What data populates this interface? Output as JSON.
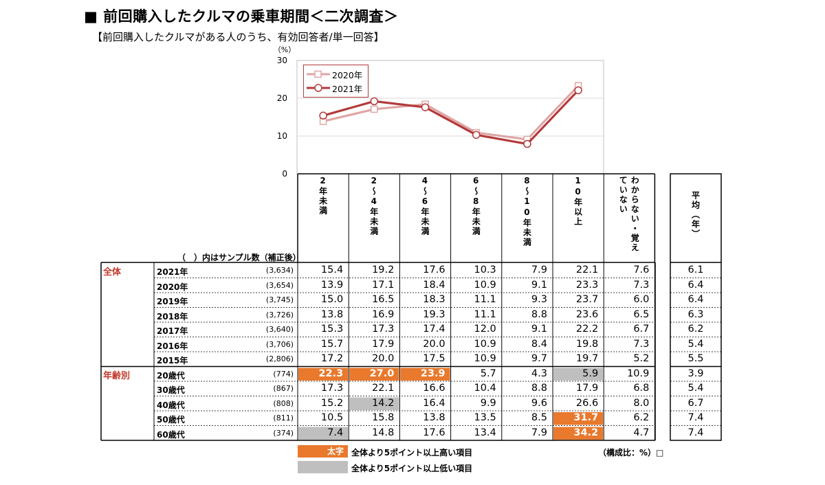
{
  "header": {
    "bullet": "■",
    "title": "前回購入したクルマの乗車期間＜二次調査＞",
    "subtitle": "【前回購入したクルマがある人のうち、有効回答者/単一回答】"
  },
  "chart_data": {
    "type": "line",
    "y_unit": "（%）",
    "ylim": [
      0,
      30
    ],
    "yticks": [
      "30",
      "20",
      "10",
      "0"
    ],
    "categories": [
      "2年未満",
      "2〜4年未満",
      "4〜6年未満",
      "6〜8年未満",
      "8〜10年未満",
      "10年以上"
    ],
    "series": [
      {
        "name": "2020年",
        "values": [
          13.9,
          17.1,
          18.4,
          10.9,
          9.1,
          23.3
        ],
        "color": "#e0a5a5",
        "marker": "square"
      },
      {
        "name": "2021年",
        "values": [
          15.4,
          19.2,
          17.6,
          10.3,
          7.9,
          22.1
        ],
        "color": "#b33a3a",
        "marker": "circle"
      }
    ],
    "legend": [
      "2020年",
      "2021年"
    ],
    "grid": true
  },
  "table": {
    "sample_note": "（　）内はサンプル数（補正後）",
    "col_headers": [
      "2年未満",
      "2〜4年未満",
      "4〜6年未満",
      "6〜8年未満",
      "8〜10年未満",
      "10年以上",
      "わからない・覚えていない"
    ],
    "avg_header": "平均（年）",
    "groups": [
      {
        "label": "全体",
        "start_row": 0
      },
      {
        "label": "年齢別",
        "start_row": 7
      }
    ],
    "rows": [
      {
        "label": "2021年",
        "n": "(3,634)",
        "values": [
          "15.4",
          "19.2",
          "17.6",
          "10.3",
          "7.9",
          "22.1",
          "7.6"
        ],
        "avg": "6.1",
        "hl": [
          "",
          "",
          "",
          "",
          "",
          "",
          ""
        ]
      },
      {
        "label": "2020年",
        "n": "(3,654)",
        "values": [
          "13.9",
          "17.1",
          "18.4",
          "10.9",
          "9.1",
          "23.3",
          "7.3"
        ],
        "avg": "6.4",
        "hl": [
          "",
          "",
          "",
          "",
          "",
          "",
          ""
        ]
      },
      {
        "label": "2019年",
        "n": "(3,745)",
        "values": [
          "15.0",
          "16.5",
          "18.3",
          "11.1",
          "9.3",
          "23.7",
          "6.0"
        ],
        "avg": "6.4",
        "hl": [
          "",
          "",
          "",
          "",
          "",
          "",
          ""
        ]
      },
      {
        "label": "2018年",
        "n": "(3,726)",
        "values": [
          "13.8",
          "16.9",
          "19.3",
          "11.1",
          "8.8",
          "23.6",
          "6.5"
        ],
        "avg": "6.3",
        "hl": [
          "",
          "",
          "",
          "",
          "",
          "",
          ""
        ]
      },
      {
        "label": "2017年",
        "n": "(3,640)",
        "values": [
          "15.3",
          "17.3",
          "17.4",
          "12.0",
          "9.1",
          "22.2",
          "6.7"
        ],
        "avg": "6.2",
        "hl": [
          "",
          "",
          "",
          "",
          "",
          "",
          ""
        ]
      },
      {
        "label": "2016年",
        "n": "(3,706)",
        "values": [
          "15.7",
          "17.9",
          "20.0",
          "10.9",
          "8.4",
          "19.8",
          "7.3"
        ],
        "avg": "5.4",
        "hl": [
          "",
          "",
          "",
          "",
          "",
          "",
          ""
        ]
      },
      {
        "label": "2015年",
        "n": "(2,806)",
        "values": [
          "17.2",
          "20.0",
          "17.5",
          "10.9",
          "9.7",
          "19.7",
          "5.2"
        ],
        "avg": "5.5",
        "hl": [
          "",
          "",
          "",
          "",
          "",
          "",
          ""
        ]
      },
      {
        "label": "20歳代",
        "n": "(774)",
        "values": [
          "22.3",
          "27.0",
          "23.9",
          "5.7",
          "4.3",
          "5.9",
          "10.9"
        ],
        "avg": "3.9",
        "hl": [
          "high",
          "high",
          "high",
          "",
          "",
          "low",
          ""
        ]
      },
      {
        "label": "30歳代",
        "n": "(867)",
        "values": [
          "17.3",
          "22.1",
          "16.6",
          "10.4",
          "8.8",
          "17.9",
          "6.8"
        ],
        "avg": "5.4",
        "hl": [
          "",
          "",
          "",
          "",
          "",
          "",
          ""
        ]
      },
      {
        "label": "40歳代",
        "n": "(808)",
        "values": [
          "15.2",
          "14.2",
          "16.4",
          "9.9",
          "9.6",
          "26.6",
          "8.0"
        ],
        "avg": "6.7",
        "hl": [
          "",
          "low",
          "",
          "",
          "",
          "",
          ""
        ]
      },
      {
        "label": "50歳代",
        "n": "(811)",
        "values": [
          "10.5",
          "15.8",
          "13.8",
          "13.5",
          "8.5",
          "31.7",
          "6.2"
        ],
        "avg": "7.4",
        "hl": [
          "",
          "",
          "",
          "",
          "",
          "high",
          ""
        ]
      },
      {
        "label": "60歳代",
        "n": "(374)",
        "values": [
          "7.4",
          "14.8",
          "17.6",
          "13.4",
          "7.9",
          "34.2",
          "4.7"
        ],
        "avg": "7.4",
        "hl": [
          "low",
          "",
          "",
          "",
          "",
          "high",
          ""
        ]
      }
    ]
  },
  "footer": {
    "key_high_label": "太字",
    "key_high_text": "全体より5ポイント以上高い項目",
    "key_low_text": "全体より5ポイント以上低い項目",
    "composition": "（構成比：%）",
    "composition_mark": "□"
  },
  "colors": {
    "high": "#e8792d",
    "low": "#bfbfbf",
    "line2020": "#e0a5a5",
    "line2021": "#b33a3a",
    "group_label": "#c0392b"
  }
}
